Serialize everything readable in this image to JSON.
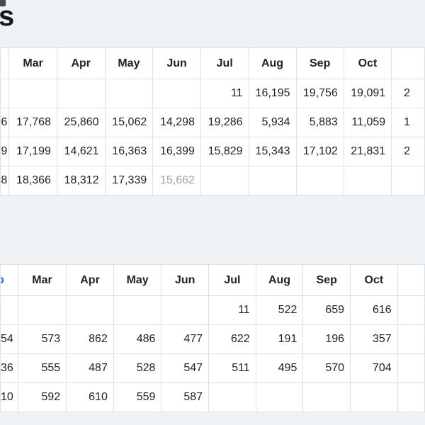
{
  "page": {
    "background": "#eff2f5",
    "heading_fragment": "s",
    "corner_fragment_color": "#47474f",
    "link_blue": "#3366cc",
    "muted_text_color": "#9ba1a6"
  },
  "table1": {
    "columns": [
      "Mar",
      "Apr",
      "May",
      "Jun",
      "Jul",
      "Aug",
      "Sep",
      "Oct"
    ],
    "header_left_frag": "",
    "rows": [
      {
        "left_frag": "",
        "cells": [
          "",
          "",
          "",
          "",
          "11",
          "16,195",
          "19,756",
          "19,091"
        ],
        "right_frag": "2",
        "muted": []
      },
      {
        "left_frag": "6",
        "cells": [
          "17,768",
          "25,860",
          "15,062",
          "14,298",
          "19,286",
          "5,934",
          "5,883",
          "11,059"
        ],
        "right_frag": "1",
        "muted": []
      },
      {
        "left_frag": "9",
        "cells": [
          "17,199",
          "14,621",
          "16,363",
          "16,399",
          "15,829",
          "15,343",
          "17,102",
          "21,831"
        ],
        "right_frag": "2",
        "muted": []
      },
      {
        "left_frag": "8",
        "cells": [
          "18,366",
          "18,312",
          "17,339",
          "15,662",
          "",
          "",
          "",
          ""
        ],
        "right_frag": "",
        "muted": [
          3
        ]
      }
    ]
  },
  "table2": {
    "columns": [
      "Mar",
      "Apr",
      "May",
      "Jun",
      "Jul",
      "Aug",
      "Sep",
      "Oct"
    ],
    "header_left_frag": "b",
    "rows": [
      {
        "left_frag": "",
        "cells": [
          "",
          "",
          "",
          "",
          "11",
          "522",
          "659",
          "616"
        ],
        "right_frag": "",
        "muted": []
      },
      {
        "left_frag": "54",
        "cells": [
          "573",
          "862",
          "486",
          "477",
          "622",
          "191",
          "196",
          "357"
        ],
        "right_frag": "",
        "muted": []
      },
      {
        "left_frag": "36",
        "cells": [
          "555",
          "487",
          "528",
          "547",
          "511",
          "495",
          "570",
          "704"
        ],
        "right_frag": "",
        "muted": []
      },
      {
        "left_frag": "10",
        "cells": [
          "592",
          "610",
          "559",
          "587",
          "",
          "",
          "",
          ""
        ],
        "right_frag": "",
        "muted": []
      }
    ]
  }
}
